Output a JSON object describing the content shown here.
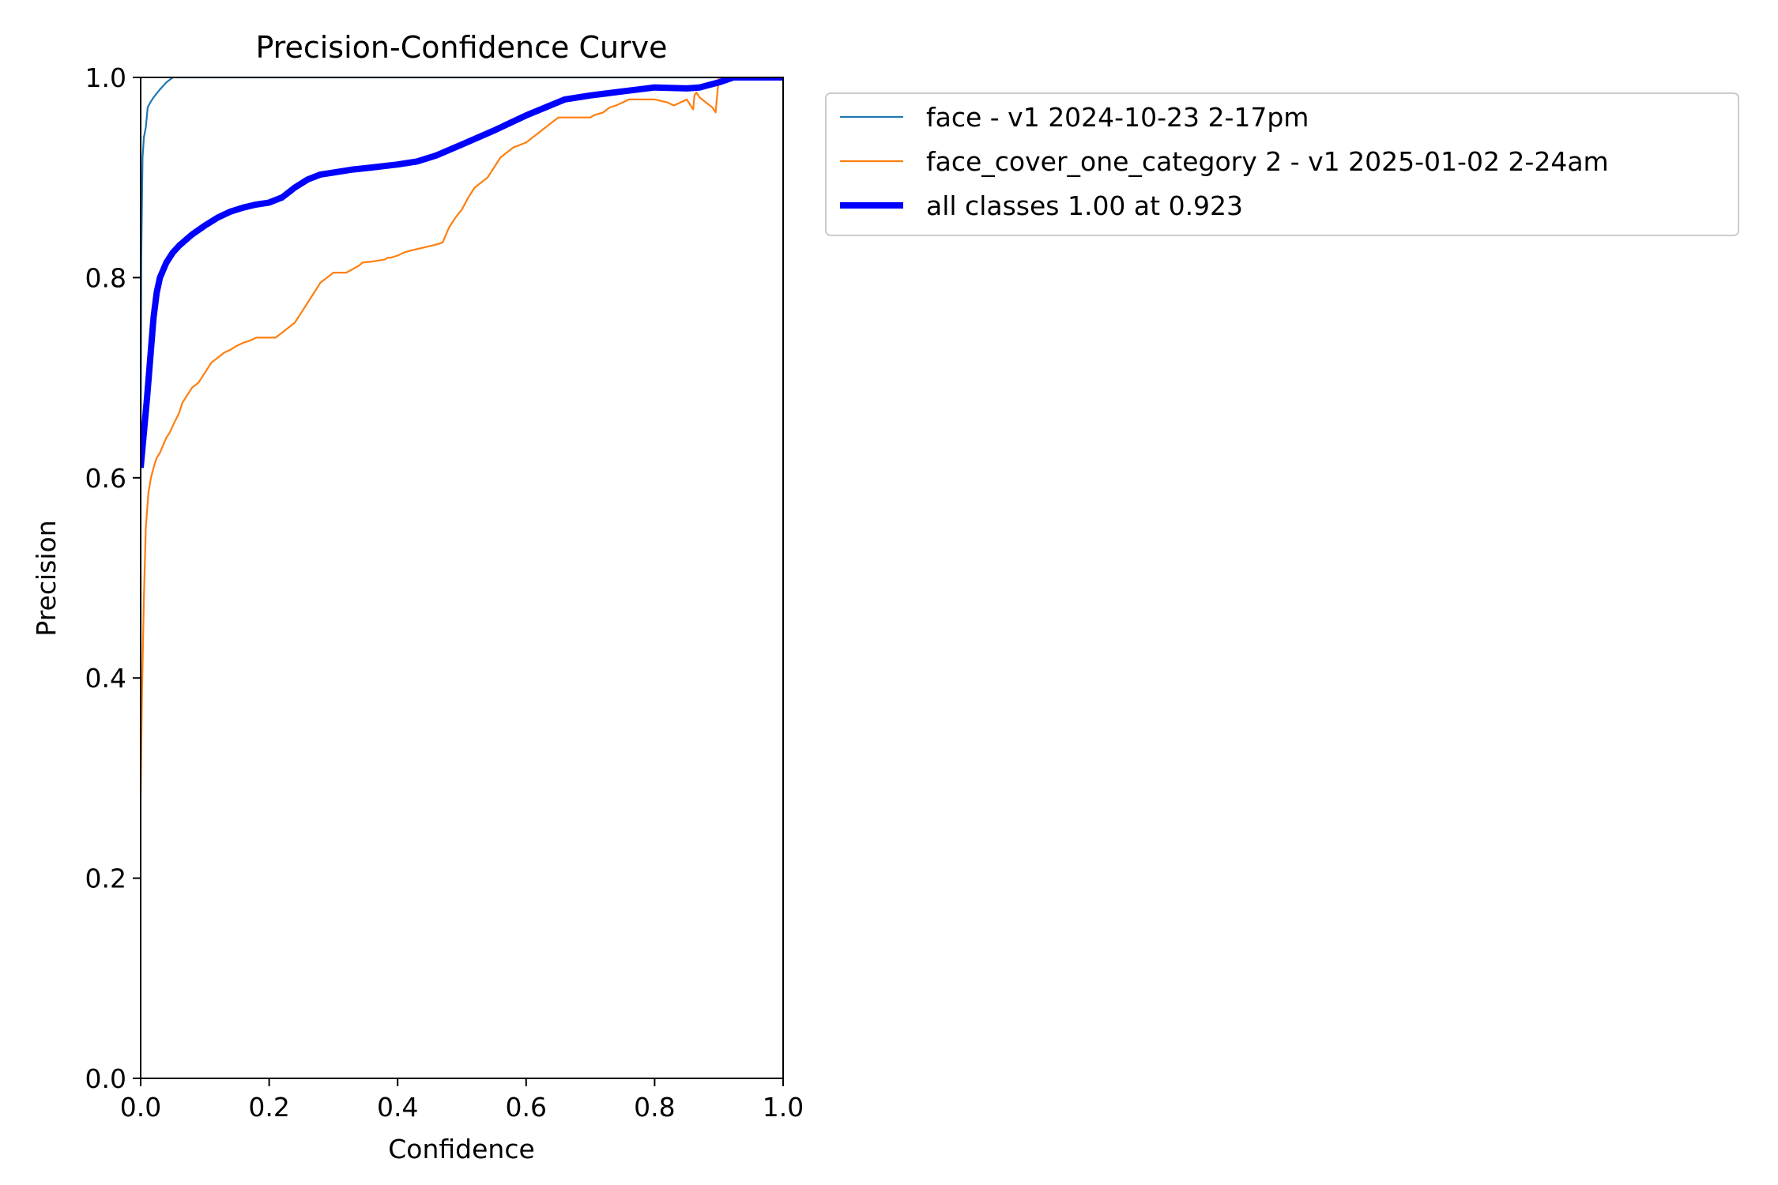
{
  "chart_data": {
    "type": "line",
    "title": "Precision-Confidence Curve",
    "xlabel": "Confidence",
    "ylabel": "Precision",
    "xlim": [
      0,
      1
    ],
    "ylim": [
      0,
      1
    ],
    "xticks": [
      {
        "value": 0.0,
        "label": "0.0"
      },
      {
        "value": 0.2,
        "label": "0.2"
      },
      {
        "value": 0.4,
        "label": "0.4"
      },
      {
        "value": 0.6,
        "label": "0.6"
      },
      {
        "value": 0.8,
        "label": "0.8"
      },
      {
        "value": 1.0,
        "label": "1.0"
      }
    ],
    "yticks": [
      {
        "value": 0.0,
        "label": "0.0"
      },
      {
        "value": 0.2,
        "label": "0.2"
      },
      {
        "value": 0.4,
        "label": "0.4"
      },
      {
        "value": 0.6,
        "label": "0.6"
      },
      {
        "value": 0.8,
        "label": "0.8"
      },
      {
        "value": 1.0,
        "label": "1.0"
      }
    ],
    "grid": false,
    "legend_position": "outside-upper-right",
    "series": [
      {
        "name": "face - v1 2024-10-23 2-17pm",
        "color": "#1f77b4",
        "width": "thin",
        "x": [
          0.0,
          0.001,
          0.003,
          0.005,
          0.008,
          0.011,
          0.015,
          0.02,
          0.03,
          0.04,
          0.05,
          0.06,
          0.1,
          0.2,
          0.3,
          0.4,
          0.5,
          0.6,
          0.7,
          0.8,
          0.9,
          1.0
        ],
        "y": [
          0.62,
          0.82,
          0.92,
          0.94,
          0.95,
          0.97,
          0.975,
          0.98,
          0.988,
          0.995,
          1.0,
          1.0,
          1.0,
          1.0,
          1.0,
          1.0,
          1.0,
          1.0,
          1.0,
          1.0,
          1.0,
          1.0
        ]
      },
      {
        "name": "face_cover_one_category 2 - v1 2025-01-02 2-24am",
        "color": "#ff7f0e",
        "width": "thin",
        "x": [
          0.0,
          0.002,
          0.005,
          0.008,
          0.012,
          0.016,
          0.02,
          0.025,
          0.03,
          0.04,
          0.045,
          0.05,
          0.06,
          0.065,
          0.07,
          0.08,
          0.09,
          0.1,
          0.11,
          0.12,
          0.13,
          0.14,
          0.15,
          0.16,
          0.17,
          0.18,
          0.19,
          0.2,
          0.21,
          0.22,
          0.23,
          0.24,
          0.25,
          0.26,
          0.27,
          0.28,
          0.3,
          0.32,
          0.34,
          0.345,
          0.36,
          0.38,
          0.385,
          0.39,
          0.4,
          0.41,
          0.42,
          0.44,
          0.46,
          0.47,
          0.48,
          0.49,
          0.5,
          0.51,
          0.52,
          0.53,
          0.54,
          0.55,
          0.56,
          0.57,
          0.58,
          0.6,
          0.61,
          0.62,
          0.63,
          0.64,
          0.65,
          0.66,
          0.68,
          0.7,
          0.705,
          0.72,
          0.73,
          0.74,
          0.75,
          0.76,
          0.77,
          0.78,
          0.8,
          0.82,
          0.83,
          0.84,
          0.85,
          0.86,
          0.862,
          0.865,
          0.87,
          0.88,
          0.89,
          0.895,
          0.897,
          0.9,
          0.92,
          1.0
        ],
        "y": [
          0.28,
          0.38,
          0.48,
          0.55,
          0.585,
          0.6,
          0.61,
          0.62,
          0.625,
          0.64,
          0.645,
          0.652,
          0.665,
          0.675,
          0.68,
          0.69,
          0.695,
          0.705,
          0.715,
          0.72,
          0.725,
          0.728,
          0.732,
          0.735,
          0.737,
          0.74,
          0.74,
          0.74,
          0.74,
          0.745,
          0.75,
          0.755,
          0.765,
          0.775,
          0.785,
          0.795,
          0.805,
          0.805,
          0.812,
          0.815,
          0.816,
          0.818,
          0.82,
          0.82,
          0.822,
          0.825,
          0.827,
          0.83,
          0.833,
          0.835,
          0.85,
          0.86,
          0.868,
          0.88,
          0.89,
          0.895,
          0.9,
          0.91,
          0.92,
          0.925,
          0.93,
          0.935,
          0.94,
          0.945,
          0.95,
          0.955,
          0.96,
          0.96,
          0.96,
          0.96,
          0.962,
          0.965,
          0.97,
          0.972,
          0.975,
          0.978,
          0.978,
          0.978,
          0.978,
          0.975,
          0.972,
          0.975,
          0.978,
          0.968,
          0.982,
          0.985,
          0.98,
          0.975,
          0.97,
          0.965,
          0.98,
          1.0,
          1.0,
          1.0
        ]
      },
      {
        "name": "all classes 1.00 at 0.923",
        "color": "#0000ff",
        "width": "thick",
        "x": [
          0.0,
          0.01,
          0.02,
          0.025,
          0.03,
          0.04,
          0.05,
          0.06,
          0.08,
          0.1,
          0.12,
          0.14,
          0.16,
          0.18,
          0.2,
          0.22,
          0.24,
          0.26,
          0.28,
          0.3,
          0.33,
          0.36,
          0.4,
          0.43,
          0.46,
          0.5,
          0.55,
          0.6,
          0.63,
          0.66,
          0.7,
          0.75,
          0.8,
          0.85,
          0.87,
          0.9,
          0.923,
          0.95,
          1.0
        ],
        "y": [
          0.61,
          0.68,
          0.76,
          0.785,
          0.8,
          0.815,
          0.825,
          0.832,
          0.843,
          0.852,
          0.86,
          0.866,
          0.87,
          0.873,
          0.875,
          0.88,
          0.89,
          0.898,
          0.903,
          0.905,
          0.908,
          0.91,
          0.913,
          0.916,
          0.922,
          0.933,
          0.947,
          0.962,
          0.97,
          0.978,
          0.982,
          0.986,
          0.99,
          0.989,
          0.99,
          0.995,
          1.0,
          1.0,
          1.0
        ]
      }
    ]
  }
}
